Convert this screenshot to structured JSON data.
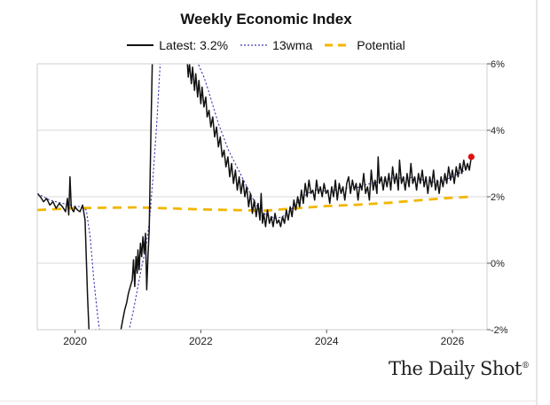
{
  "chart_data": {
    "type": "line",
    "title": "Weekly Economic Index",
    "legend_position": "top",
    "grid": true,
    "xlim": [
      2019.4,
      2026.55
    ],
    "ylim": [
      -2,
      6
    ],
    "x_ticks": [
      {
        "value": 2020,
        "label": "2020"
      },
      {
        "value": 2022,
        "label": "2022"
      },
      {
        "value": 2024,
        "label": "2024"
      },
      {
        "value": 2026,
        "label": "2026"
      }
    ],
    "y_ticks": [
      {
        "value": 6,
        "label": "6%"
      },
      {
        "value": 4,
        "label": "4%"
      },
      {
        "value": 2,
        "label": "2%"
      },
      {
        "value": 0,
        "label": "0%"
      },
      {
        "value": -2,
        "label": "-2%"
      }
    ],
    "series": [
      {
        "name": "Latest: 3.2%",
        "style": "solid",
        "color": "#111111",
        "points": [
          [
            2019.4,
            2.1
          ],
          [
            2019.45,
            2.0
          ],
          [
            2019.5,
            1.85
          ],
          [
            2019.55,
            1.95
          ],
          [
            2019.6,
            1.75
          ],
          [
            2019.65,
            1.85
          ],
          [
            2019.7,
            1.65
          ],
          [
            2019.75,
            1.8
          ],
          [
            2019.8,
            1.7
          ],
          [
            2019.85,
            1.55
          ],
          [
            2019.88,
            1.95
          ],
          [
            2019.9,
            1.45
          ],
          [
            2019.92,
            2.6
          ],
          [
            2019.94,
            1.7
          ],
          [
            2019.96,
            1.6
          ],
          [
            2019.98,
            1.55
          ],
          [
            2020.0,
            1.7
          ],
          [
            2020.04,
            1.6
          ],
          [
            2020.08,
            1.55
          ],
          [
            2020.12,
            1.75
          ],
          [
            2020.16,
            1.3
          ],
          [
            2020.2,
            -1.0
          ],
          [
            2020.23,
            -2.4
          ],
          [
            2020.31,
            -2.4
          ],
          [
            2020.33,
            -2.0
          ],
          [
            2020.36,
            -2.4
          ],
          [
            2020.68,
            -2.4
          ],
          [
            2020.7,
            -2.2
          ],
          [
            2020.73,
            -2.0
          ],
          [
            2020.76,
            -1.7
          ],
          [
            2020.79,
            -1.4
          ],
          [
            2020.82,
            -1.2
          ],
          [
            2020.85,
            -0.9
          ],
          [
            2020.88,
            -0.7
          ],
          [
            2020.91,
            -0.5
          ],
          [
            2020.93,
            0.1
          ],
          [
            2020.95,
            -0.7
          ],
          [
            2020.97,
            0.2
          ],
          [
            2020.99,
            -0.3
          ],
          [
            2021.0,
            0.4
          ],
          [
            2021.02,
            -0.2
          ],
          [
            2021.04,
            0.6
          ],
          [
            2021.06,
            0.2
          ],
          [
            2021.08,
            0.8
          ],
          [
            2021.1,
            0.3
          ],
          [
            2021.12,
            0.9
          ],
          [
            2021.14,
            -0.8
          ],
          [
            2021.16,
            0.2
          ],
          [
            2021.18,
            1.0
          ],
          [
            2021.21,
            4.2
          ],
          [
            2021.23,
            6.2
          ],
          [
            2021.78,
            6.2
          ],
          [
            2021.8,
            5.6
          ],
          [
            2021.82,
            6.0
          ],
          [
            2021.85,
            5.4
          ],
          [
            2021.87,
            5.9
          ],
          [
            2021.9,
            5.2
          ],
          [
            2021.92,
            5.7
          ],
          [
            2021.95,
            5.0
          ],
          [
            2021.97,
            5.5
          ],
          [
            2022.0,
            4.8
          ],
          [
            2022.02,
            5.3
          ],
          [
            2022.05,
            4.7
          ],
          [
            2022.08,
            5.0
          ],
          [
            2022.1,
            4.4
          ],
          [
            2022.13,
            4.6
          ],
          [
            2022.16,
            4.1
          ],
          [
            2022.19,
            4.4
          ],
          [
            2022.22,
            3.8
          ],
          [
            2022.25,
            4.1
          ],
          [
            2022.28,
            3.5
          ],
          [
            2022.31,
            3.8
          ],
          [
            2022.34,
            3.2
          ],
          [
            2022.37,
            3.4
          ],
          [
            2022.4,
            2.9
          ],
          [
            2022.43,
            3.2
          ],
          [
            2022.46,
            2.6
          ],
          [
            2022.49,
            3.0
          ],
          [
            2022.52,
            2.4
          ],
          [
            2022.55,
            2.8
          ],
          [
            2022.58,
            2.2
          ],
          [
            2022.61,
            2.6
          ],
          [
            2022.64,
            2.1
          ],
          [
            2022.67,
            2.5
          ],
          [
            2022.7,
            2.0
          ],
          [
            2022.73,
            2.3
          ],
          [
            2022.76,
            1.7
          ],
          [
            2022.79,
            2.1
          ],
          [
            2022.82,
            1.5
          ],
          [
            2022.85,
            1.9
          ],
          [
            2022.88,
            1.4
          ],
          [
            2022.91,
            1.8
          ],
          [
            2022.94,
            1.3
          ],
          [
            2022.96,
            2.1
          ],
          [
            2022.98,
            1.2
          ],
          [
            2023.0,
            1.5
          ],
          [
            2023.03,
            1.1
          ],
          [
            2023.06,
            1.6
          ],
          [
            2023.09,
            1.2
          ],
          [
            2023.12,
            1.4
          ],
          [
            2023.15,
            1.1
          ],
          [
            2023.18,
            1.5
          ],
          [
            2023.21,
            1.2
          ],
          [
            2023.24,
            1.3
          ],
          [
            2023.27,
            1.1
          ],
          [
            2023.3,
            1.4
          ],
          [
            2023.33,
            1.2
          ],
          [
            2023.36,
            1.6
          ],
          [
            2023.39,
            1.3
          ],
          [
            2023.42,
            1.7
          ],
          [
            2023.45,
            1.4
          ],
          [
            2023.48,
            1.9
          ],
          [
            2023.51,
            1.6
          ],
          [
            2023.54,
            2.0
          ],
          [
            2023.57,
            1.7
          ],
          [
            2023.6,
            2.2
          ],
          [
            2023.63,
            1.8
          ],
          [
            2023.66,
            2.4
          ],
          [
            2023.69,
            2.0
          ],
          [
            2023.72,
            2.5
          ],
          [
            2023.75,
            2.1
          ],
          [
            2023.78,
            2.2
          ],
          [
            2023.81,
            1.9
          ],
          [
            2023.84,
            2.5
          ],
          [
            2023.87,
            2.1
          ],
          [
            2023.9,
            2.3
          ],
          [
            2023.93,
            2.0
          ],
          [
            2023.96,
            2.4
          ],
          [
            2023.99,
            2.1
          ],
          [
            2024.02,
            2.2
          ],
          [
            2024.05,
            1.8
          ],
          [
            2024.08,
            2.3
          ],
          [
            2024.11,
            2.0
          ],
          [
            2024.14,
            2.5
          ],
          [
            2024.17,
            1.9
          ],
          [
            2024.2,
            2.4
          ],
          [
            2024.23,
            2.1
          ],
          [
            2024.26,
            2.3
          ],
          [
            2024.29,
            1.9
          ],
          [
            2024.32,
            2.4
          ],
          [
            2024.35,
            2.6
          ],
          [
            2024.38,
            2.1
          ],
          [
            2024.41,
            2.5
          ],
          [
            2024.44,
            2.2
          ],
          [
            2024.47,
            2.4
          ],
          [
            2024.5,
            1.9
          ],
          [
            2024.53,
            2.4
          ],
          [
            2024.56,
            2.2
          ],
          [
            2024.59,
            2.7
          ],
          [
            2024.62,
            2.1
          ],
          [
            2024.65,
            2.3
          ],
          [
            2024.68,
            1.9
          ],
          [
            2024.71,
            2.8
          ],
          [
            2024.74,
            2.2
          ],
          [
            2024.77,
            2.5
          ],
          [
            2024.8,
            2.1
          ],
          [
            2024.82,
            3.2
          ],
          [
            2024.84,
            2.4
          ],
          [
            2024.87,
            2.6
          ],
          [
            2024.9,
            2.2
          ],
          [
            2024.93,
            2.6
          ],
          [
            2024.96,
            2.3
          ],
          [
            2024.99,
            2.7
          ],
          [
            2025.02,
            2.2
          ],
          [
            2025.05,
            2.9
          ],
          [
            2025.08,
            2.4
          ],
          [
            2025.11,
            2.7
          ],
          [
            2025.14,
            2.2
          ],
          [
            2025.16,
            3.1
          ],
          [
            2025.19,
            2.4
          ],
          [
            2025.22,
            2.6
          ],
          [
            2025.25,
            2.2
          ],
          [
            2025.28,
            2.7
          ],
          [
            2025.31,
            2.3
          ],
          [
            2025.34,
            3.0
          ],
          [
            2025.37,
            2.4
          ],
          [
            2025.4,
            2.6
          ],
          [
            2025.43,
            2.2
          ],
          [
            2025.46,
            2.7
          ],
          [
            2025.49,
            2.4
          ],
          [
            2025.52,
            2.8
          ],
          [
            2025.55,
            2.3
          ],
          [
            2025.58,
            2.6
          ],
          [
            2025.61,
            2.1
          ],
          [
            2025.64,
            2.6
          ],
          [
            2025.67,
            2.3
          ],
          [
            2025.7,
            2.8
          ],
          [
            2025.73,
            2.2
          ],
          [
            2025.76,
            2.5
          ],
          [
            2025.79,
            2.1
          ],
          [
            2025.82,
            2.6
          ],
          [
            2025.85,
            2.3
          ],
          [
            2025.88,
            2.7
          ],
          [
            2025.91,
            2.4
          ],
          [
            2025.94,
            2.9
          ],
          [
            2025.97,
            2.5
          ],
          [
            2026.0,
            2.8
          ],
          [
            2026.03,
            2.4
          ],
          [
            2026.06,
            2.9
          ],
          [
            2026.09,
            2.6
          ],
          [
            2026.12,
            3.0
          ],
          [
            2026.15,
            2.7
          ],
          [
            2026.18,
            3.1
          ],
          [
            2026.21,
            2.8
          ],
          [
            2026.24,
            3.0
          ],
          [
            2026.27,
            2.8
          ],
          [
            2026.3,
            3.2
          ]
        ]
      },
      {
        "name": "13wma",
        "style": "dotted",
        "color": "#3b3bb5",
        "points": [
          [
            2019.4,
            2.1
          ],
          [
            2019.6,
            1.9
          ],
          [
            2019.8,
            1.8
          ],
          [
            2020.0,
            1.72
          ],
          [
            2020.1,
            1.7
          ],
          [
            2020.18,
            1.6
          ],
          [
            2020.24,
            0.8
          ],
          [
            2020.3,
            -0.5
          ],
          [
            2020.36,
            -1.6
          ],
          [
            2020.42,
            -2.4
          ],
          [
            2020.8,
            -2.4
          ],
          [
            2020.86,
            -2.0
          ],
          [
            2020.92,
            -1.5
          ],
          [
            2021.0,
            -0.7
          ],
          [
            2021.06,
            -0.1
          ],
          [
            2021.12,
            0.4
          ],
          [
            2021.18,
            1.2
          ],
          [
            2021.24,
            2.6
          ],
          [
            2021.3,
            4.2
          ],
          [
            2021.36,
            6.2
          ],
          [
            2021.92,
            6.2
          ],
          [
            2021.98,
            5.9
          ],
          [
            2022.05,
            5.6
          ],
          [
            2022.12,
            5.2
          ],
          [
            2022.2,
            4.7
          ],
          [
            2022.28,
            4.2
          ],
          [
            2022.36,
            3.8
          ],
          [
            2022.44,
            3.4
          ],
          [
            2022.52,
            3.1
          ],
          [
            2022.6,
            2.8
          ],
          [
            2022.68,
            2.5
          ],
          [
            2022.76,
            2.2
          ],
          [
            2022.84,
            1.9
          ],
          [
            2022.92,
            1.65
          ],
          [
            2023.0,
            1.5
          ],
          [
            2023.1,
            1.4
          ],
          [
            2023.2,
            1.35
          ],
          [
            2023.3,
            1.4
          ],
          [
            2023.4,
            1.55
          ],
          [
            2023.5,
            1.75
          ],
          [
            2023.6,
            1.95
          ],
          [
            2023.7,
            2.1
          ],
          [
            2023.8,
            2.2
          ],
          [
            2023.9,
            2.22
          ],
          [
            2024.0,
            2.15
          ],
          [
            2024.1,
            2.18
          ],
          [
            2024.2,
            2.25
          ],
          [
            2024.3,
            2.25
          ],
          [
            2024.4,
            2.3
          ],
          [
            2024.5,
            2.28
          ],
          [
            2024.6,
            2.35
          ],
          [
            2024.7,
            2.4
          ],
          [
            2024.8,
            2.45
          ],
          [
            2024.9,
            2.5
          ],
          [
            2025.0,
            2.55
          ],
          [
            2025.1,
            2.58
          ],
          [
            2025.2,
            2.55
          ],
          [
            2025.3,
            2.6
          ],
          [
            2025.4,
            2.55
          ],
          [
            2025.5,
            2.52
          ],
          [
            2025.6,
            2.48
          ],
          [
            2025.7,
            2.45
          ],
          [
            2025.8,
            2.45
          ],
          [
            2025.9,
            2.52
          ],
          [
            2026.0,
            2.6
          ],
          [
            2026.1,
            2.7
          ],
          [
            2026.2,
            2.8
          ],
          [
            2026.3,
            2.95
          ]
        ]
      },
      {
        "name": "Potential",
        "style": "dashed",
        "color": "#f2b600",
        "points": [
          [
            2019.4,
            1.6
          ],
          [
            2020.0,
            1.66
          ],
          [
            2021.0,
            1.68
          ],
          [
            2022.0,
            1.62
          ],
          [
            2022.5,
            1.6
          ],
          [
            2023.0,
            1.58
          ],
          [
            2023.5,
            1.65
          ],
          [
            2024.0,
            1.72
          ],
          [
            2024.5,
            1.76
          ],
          [
            2025.0,
            1.82
          ],
          [
            2025.5,
            1.9
          ],
          [
            2026.0,
            1.97
          ],
          [
            2026.3,
            2.0
          ]
        ]
      }
    ],
    "latest_point": {
      "x": 2026.3,
      "y": 3.2,
      "color": "#e01010"
    }
  },
  "branding": {
    "text": "The Daily Shot",
    "mark": "®"
  }
}
